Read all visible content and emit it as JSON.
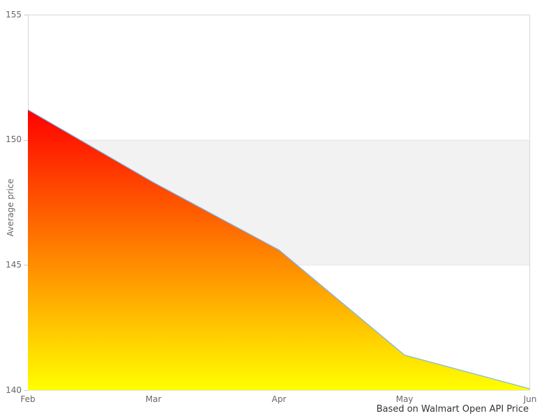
{
  "chart_data": {
    "type": "area",
    "title": "",
    "x_categories": [
      "Feb",
      "Mar",
      "Apr",
      "May",
      "Jun"
    ],
    "series": [
      {
        "name": "Average price",
        "values": [
          151.2,
          148.3,
          145.6,
          141.4,
          140.05
        ]
      }
    ],
    "xlabel": "",
    "ylabel": "Average price",
    "ylim": [
      140,
      155
    ],
    "y_ticks": [
      140,
      145,
      150,
      155
    ],
    "grid": "horizontal",
    "legend": "none",
    "plot_band": {
      "from": 145,
      "to": 150,
      "color": "#f2f2f2"
    },
    "caption": "Based on Walmart Open API Price",
    "colors": {
      "line": "#7cb5ec",
      "area_gradient_top": "#ff0000",
      "area_gradient_bottom": "#ffff00",
      "plot_border": "#d8d8d8",
      "gridline": "#e6e6e6",
      "tick_mark": "#cccccc",
      "axis_label_text": "#666666",
      "caption_text": "#333333",
      "background": "#ffffff"
    }
  }
}
